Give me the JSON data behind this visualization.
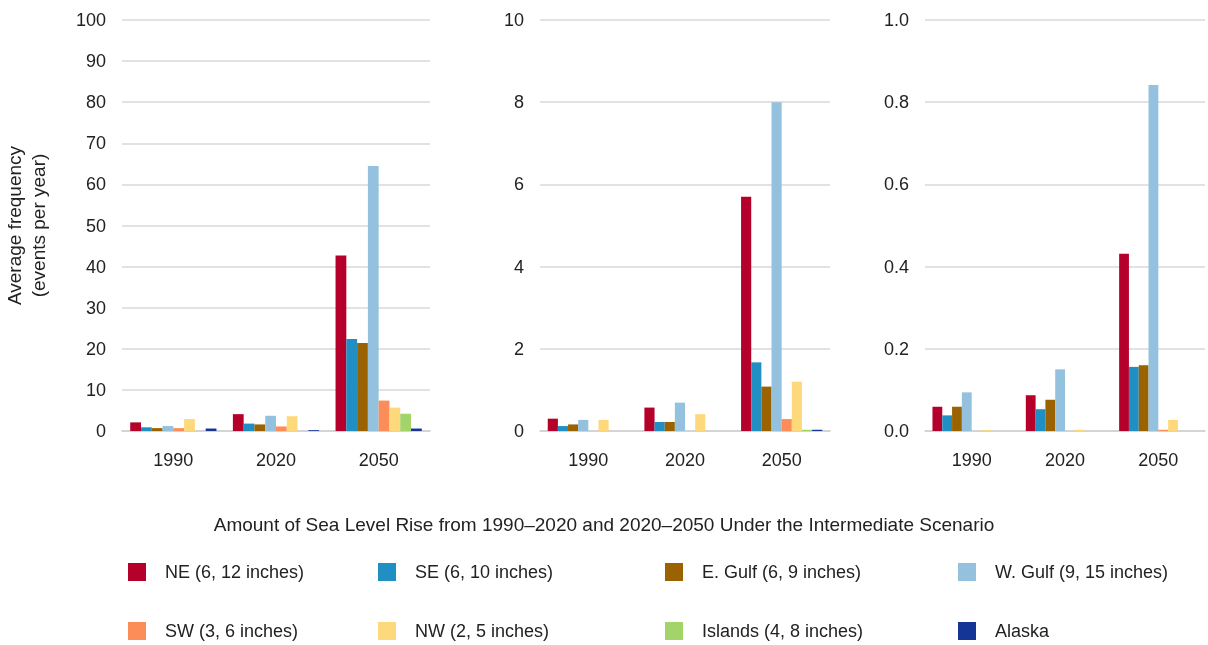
{
  "chart_data": [
    {
      "type": "bar",
      "ylabel": "Average frequency\n(events per year)",
      "xlabel": "Amount of Sea Level Rise from 1990–2020 and 2020–2050 Under the Intermediate Scenario",
      "categories": [
        "1990",
        "2020",
        "2050"
      ],
      "ylim": [
        0,
        100
      ],
      "yticks": [
        0,
        10,
        20,
        30,
        40,
        50,
        60,
        70,
        80,
        90,
        100
      ],
      "grid": "y",
      "legend": "bottom",
      "series": [
        {
          "name": "NE (6, 12 inches)",
          "color": "#b5002b",
          "values": [
            2.1,
            4.1,
            42.7
          ]
        },
        {
          "name": "SE (6, 10 inches)",
          "color": "#1f8fc4",
          "values": [
            0.9,
            1.8,
            22.4
          ]
        },
        {
          "name": "E. Gulf (6, 9 inches)",
          "color": "#9a6200",
          "values": [
            0.7,
            1.6,
            21.4
          ]
        },
        {
          "name": "W. Gulf (9, 15 inches)",
          "color": "#93c1de",
          "values": [
            1.2,
            3.7,
            64.5
          ]
        },
        {
          "name": "SW (3, 6 inches)",
          "color": "#fc8d59",
          "values": [
            0.7,
            1.1,
            7.4
          ]
        },
        {
          "name": "NW (2, 5 inches)",
          "color": "#fed97b",
          "values": [
            2.9,
            3.6,
            5.7
          ]
        },
        {
          "name": "Islands (4, 8 inches)",
          "color": "#a2d46a",
          "values": [
            0,
            0,
            4.2
          ]
        },
        {
          "name": "Alaska",
          "color": "#143596",
          "values": [
            0.6,
            0.2,
            0.6
          ]
        }
      ]
    },
    {
      "type": "bar",
      "categories": [
        "1990",
        "2020",
        "2050"
      ],
      "ylim": [
        0,
        10
      ],
      "yticks": [
        0,
        2,
        4,
        6,
        8,
        10
      ],
      "grid": "y",
      "series": [
        {
          "color": "#b5002b",
          "values": [
            0.3,
            0.57,
            5.7
          ]
        },
        {
          "color": "#1f8fc4",
          "values": [
            0.12,
            0.22,
            1.67
          ]
        },
        {
          "color": "#9a6200",
          "values": [
            0.16,
            0.22,
            1.08
          ]
        },
        {
          "color": "#93c1de",
          "values": [
            0.27,
            0.69,
            8.0
          ]
        },
        {
          "color": "#fc8d59",
          "values": [
            0,
            null,
            0.29
          ]
        },
        {
          "color": "#fed97b",
          "values": [
            0.27,
            0.41,
            1.2
          ]
        },
        {
          "color": "#a2d46a",
          "values": [
            0,
            0,
            0.03
          ]
        },
        {
          "color": "#143596",
          "values": [
            0,
            0,
            0.03
          ]
        }
      ]
    },
    {
      "type": "bar",
      "categories": [
        "1990",
        "2020",
        "2050"
      ],
      "ylim": [
        0,
        1
      ],
      "yticks": [
        {
          "value": 0,
          "label": "0.0"
        },
        0.2,
        0.4,
        0.6,
        0.8,
        {
          "value": 1,
          "label": "1.0"
        }
      ],
      "grid": "y",
      "series": [
        {
          "color": "#b5002b",
          "values": [
            0.059,
            0.087,
            0.431
          ]
        },
        {
          "color": "#1f8fc4",
          "values": [
            0.038,
            0.053,
            0.156
          ]
        },
        {
          "color": "#9a6200",
          "values": [
            0.059,
            0.076,
            0.16
          ]
        },
        {
          "color": "#93c1de",
          "values": [
            0.094,
            0.15,
            0.842
          ]
        },
        {
          "color": "#fc8d59",
          "values": [
            0,
            0,
            0.003
          ]
        },
        {
          "color": "#fed97b",
          "values": [
            0.002,
            0.003,
            0.027
          ]
        },
        {
          "color": "#a2d46a",
          "values": [
            0,
            0,
            0
          ]
        },
        {
          "color": "#143596",
          "values": [
            0,
            0,
            0
          ]
        }
      ]
    }
  ]
}
